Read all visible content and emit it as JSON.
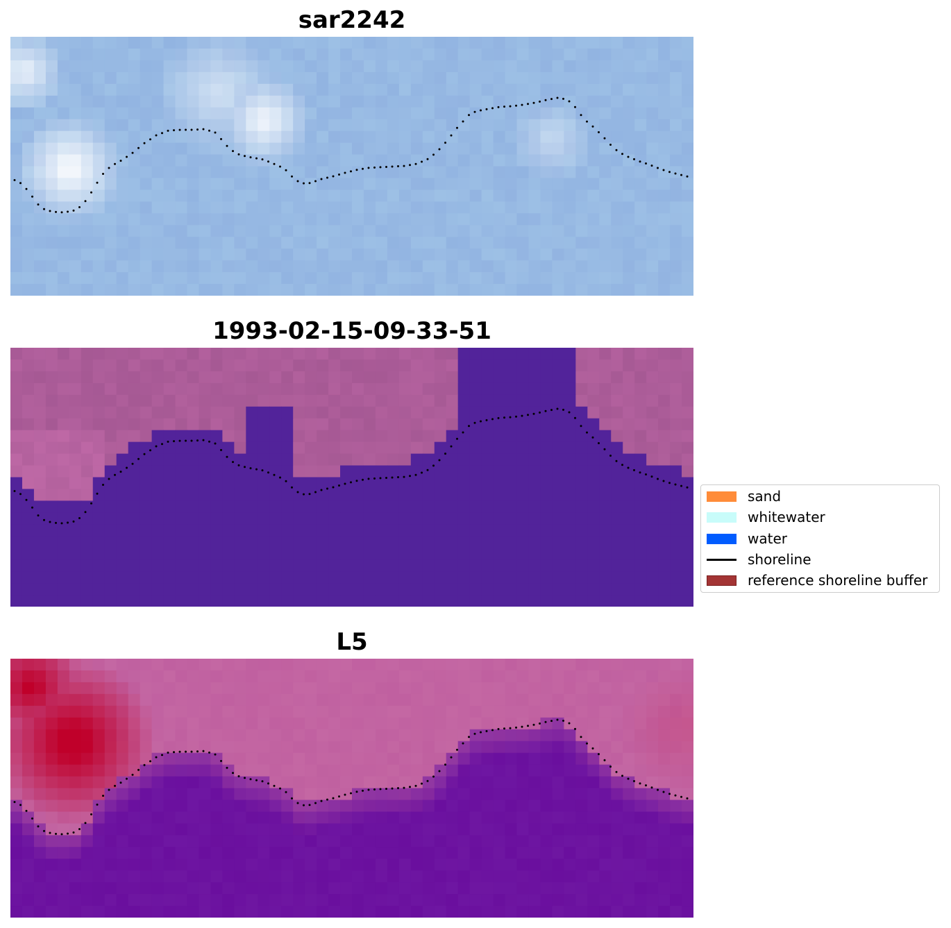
{
  "panels": [
    {
      "title": "sar2242",
      "kind": "rgb",
      "colors": {
        "base": "#a4c8e8",
        "bright": "#ffffff",
        "dark": "#8fb0e0"
      }
    },
    {
      "title": "1993-02-15-09-33-51",
      "kind": "classification",
      "colors": {
        "land": "#a05590",
        "water": "#52239a"
      }
    },
    {
      "title": "L5",
      "kind": "index",
      "colors": {
        "high": "#c0002a",
        "mid": "#c060a0",
        "low": "#6a0f9e"
      }
    }
  ],
  "legend": {
    "items": [
      {
        "label": "sand",
        "type": "patch",
        "color": "#ff8c39",
        "edge": "#ff8c39"
      },
      {
        "label": "whitewater",
        "type": "patch",
        "color": "#c8fcfa",
        "edge": "#c8fcfa"
      },
      {
        "label": "water",
        "type": "patch",
        "color": "#005cff",
        "edge": "#005cff"
      },
      {
        "label": "shoreline",
        "type": "line",
        "color": "#000000"
      },
      {
        "label": "reference shoreline buffer",
        "type": "patch",
        "color": "#a33434",
        "edge": "#7a1f1f"
      }
    ]
  },
  "shoreline_dot_color": "#000000"
}
